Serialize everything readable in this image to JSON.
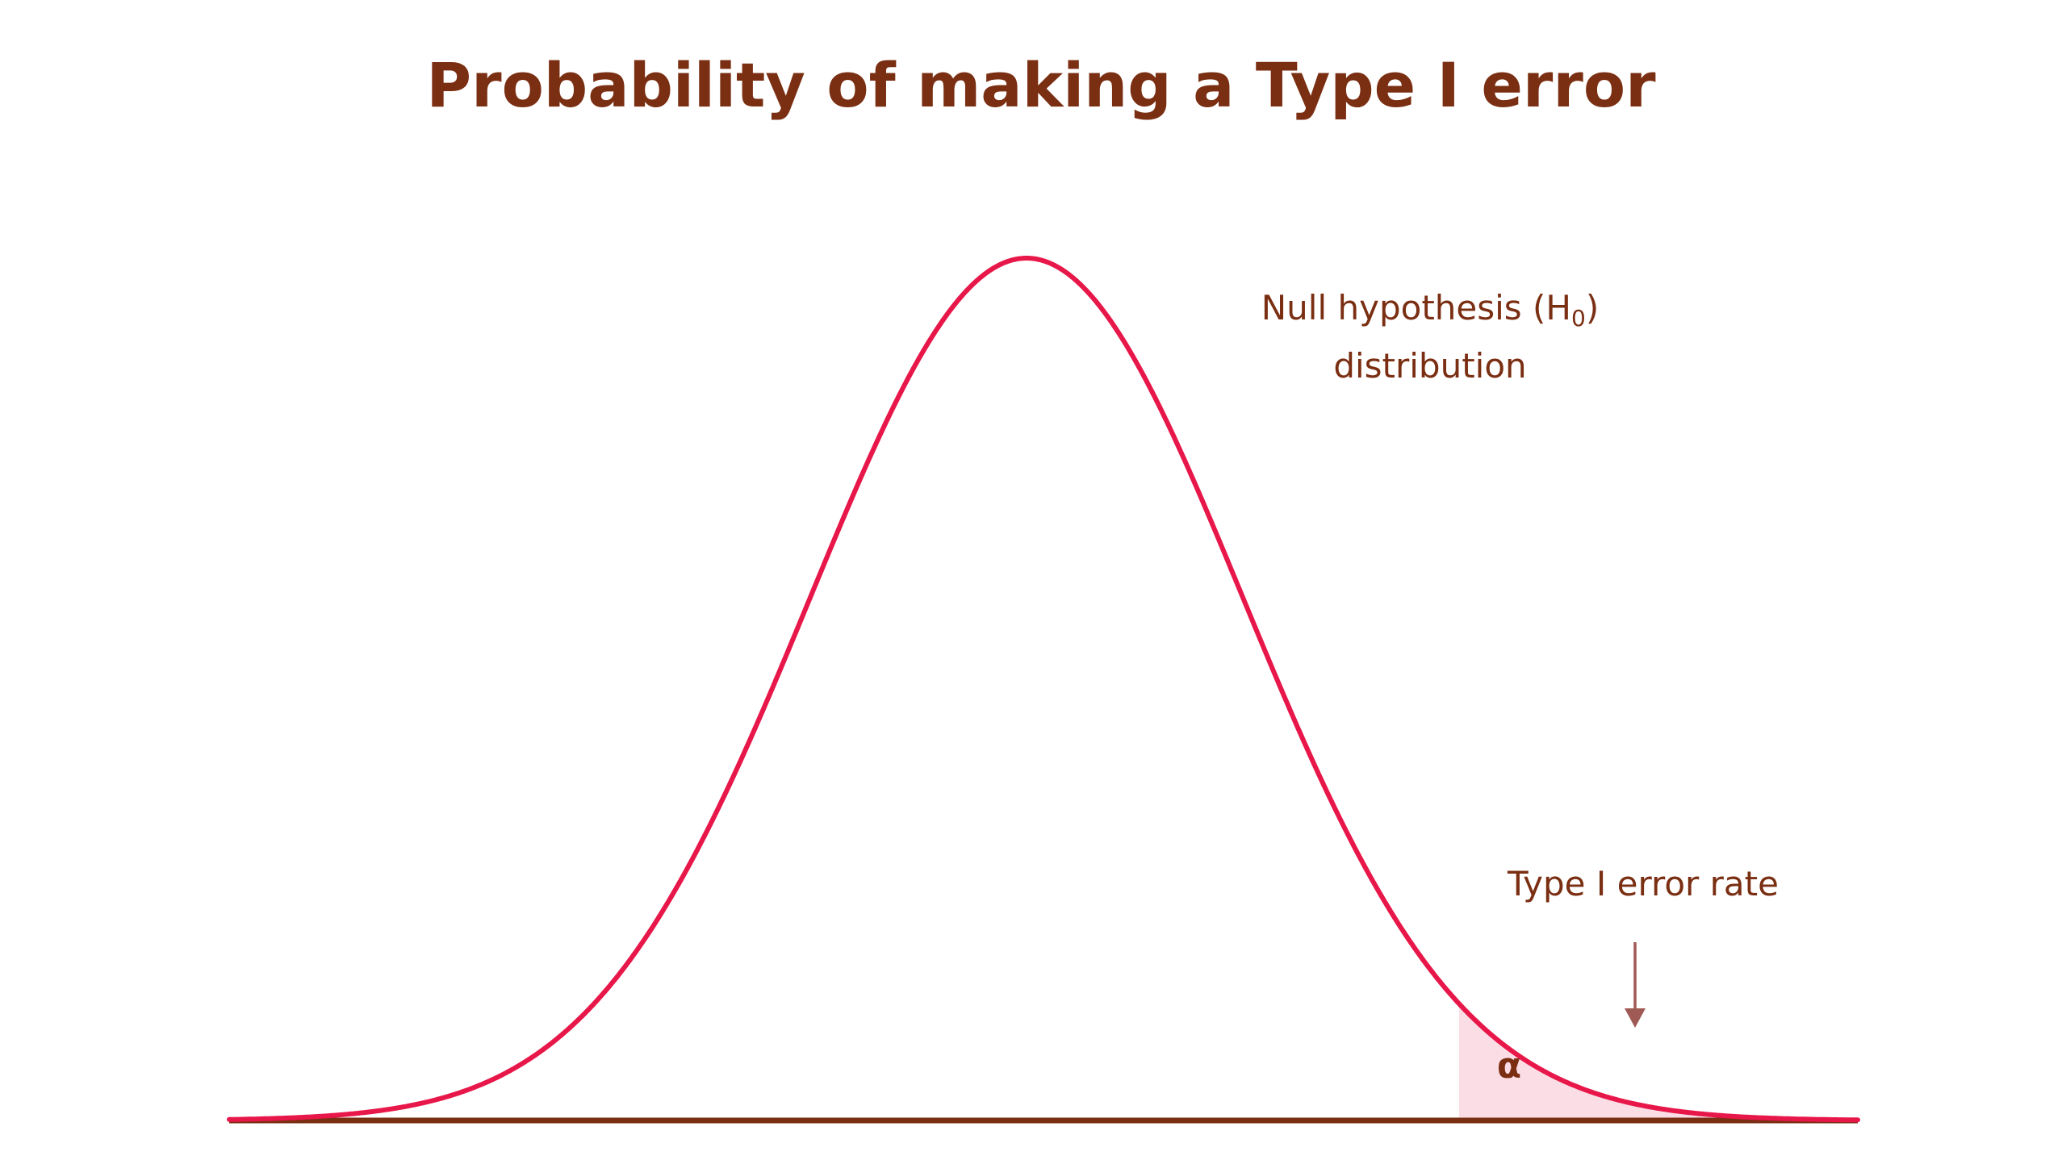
{
  "title": "Probability of making a Type I error",
  "labels": {
    "null_line1_prefix": "Null hypothesis (H",
    "null_subscript": "0",
    "null_line1_suffix": ")",
    "null_line2": "distribution",
    "type1_rate": "Type I error rate",
    "alpha": "α"
  },
  "colors": {
    "title": "#7a2e12",
    "label": "#7a2e12",
    "curve": "#e8174a",
    "tail_fill": "#fbdde6",
    "baseline": "#7a2e12",
    "arrow": "#a05a55"
  },
  "distribution": {
    "type": "normal",
    "critical_region": "upper tail"
  }
}
